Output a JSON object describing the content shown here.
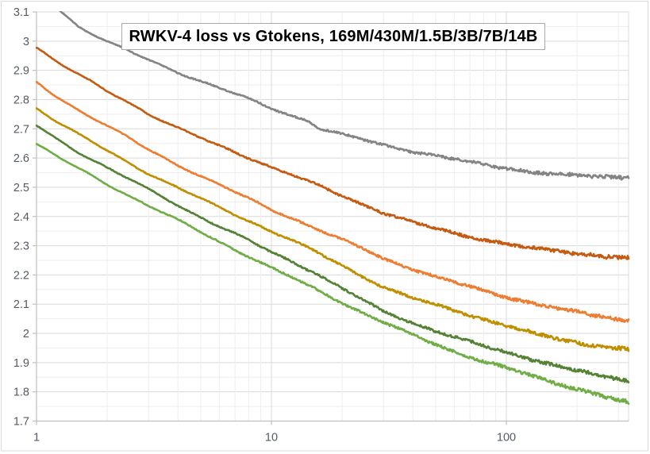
{
  "chart_data": {
    "type": "line",
    "title": "RWKV-4 loss vs Gtokens, 169M/430M/1.5B/3B/7B/14B",
    "xlabel": "",
    "ylabel": "",
    "legend": "none",
    "grid": "major+minor",
    "x_axis": {
      "scale": "log",
      "min": 1,
      "max": 331,
      "ticks": [
        {
          "label": "1",
          "value": 1
        },
        {
          "label": "10",
          "value": 10
        },
        {
          "label": "100",
          "value": 100
        }
      ],
      "minor_gridlines": [
        2,
        3,
        4,
        5,
        6,
        7,
        8,
        9,
        20,
        30,
        40,
        50,
        60,
        70,
        80,
        90,
        200,
        300
      ]
    },
    "y_axis": {
      "min": 1.7,
      "max": 3.1,
      "major_step": 0.1,
      "minor_step": 0.05,
      "tick_labels": [
        "3.1",
        "3",
        "2.9",
        "2.8",
        "2.7",
        "2.6",
        "2.5",
        "2.4",
        "2.3",
        "2.2",
        "2.1",
        "2",
        "1.9",
        "1.8",
        "1.7"
      ]
    },
    "series": [
      {
        "name": "169M",
        "color": "#848484",
        "points": [
          [
            1.2,
            3.12
          ],
          [
            1.5,
            3.055
          ],
          [
            2,
            3.0
          ],
          [
            2.5,
            2.965
          ],
          [
            3,
            2.935
          ],
          [
            4,
            2.893
          ],
          [
            5,
            2.862
          ],
          [
            6,
            2.838
          ],
          [
            8,
            2.8
          ],
          [
            10,
            2.77
          ],
          [
            12,
            2.748
          ],
          [
            14,
            2.732
          ],
          [
            15,
            2.72
          ],
          [
            16,
            2.703
          ],
          [
            18,
            2.692
          ],
          [
            20,
            2.682
          ],
          [
            25,
            2.662
          ],
          [
            30,
            2.645
          ],
          [
            40,
            2.622
          ],
          [
            50,
            2.606
          ],
          [
            65,
            2.59
          ],
          [
            80,
            2.576
          ],
          [
            100,
            2.565
          ],
          [
            130,
            2.553
          ],
          [
            160,
            2.546
          ],
          [
            200,
            2.541
          ],
          [
            260,
            2.536
          ],
          [
            331,
            2.533
          ]
        ]
      },
      {
        "name": "430M",
        "color": "#c55a11",
        "points": [
          [
            1,
            2.98
          ],
          [
            1.2,
            2.935
          ],
          [
            1.5,
            2.885
          ],
          [
            2,
            2.825
          ],
          [
            2.5,
            2.785
          ],
          [
            3,
            2.752
          ],
          [
            4,
            2.705
          ],
          [
            5,
            2.67
          ],
          [
            6,
            2.642
          ],
          [
            8,
            2.602
          ],
          [
            10,
            2.57
          ],
          [
            12,
            2.545
          ],
          [
            15,
            2.512
          ],
          [
            20,
            2.468
          ],
          [
            25,
            2.437
          ],
          [
            30,
            2.413
          ],
          [
            40,
            2.381
          ],
          [
            50,
            2.36
          ],
          [
            65,
            2.337
          ],
          [
            80,
            2.322
          ],
          [
            100,
            2.307
          ],
          [
            130,
            2.291
          ],
          [
            160,
            2.281
          ],
          [
            200,
            2.272
          ],
          [
            260,
            2.264
          ],
          [
            331,
            2.259
          ]
        ]
      },
      {
        "name": "1.5B",
        "color": "#ed7d31",
        "points": [
          [
            1,
            2.86
          ],
          [
            1.2,
            2.815
          ],
          [
            1.5,
            2.765
          ],
          [
            2,
            2.708
          ],
          [
            2.5,
            2.663
          ],
          [
            3,
            2.627
          ],
          [
            4,
            2.577
          ],
          [
            5,
            2.54
          ],
          [
            6,
            2.51
          ],
          [
            8,
            2.462
          ],
          [
            10,
            2.425
          ],
          [
            12,
            2.398
          ],
          [
            15,
            2.363
          ],
          [
            20,
            2.318
          ],
          [
            25,
            2.285
          ],
          [
            30,
            2.255
          ],
          [
            40,
            2.22
          ],
          [
            50,
            2.195
          ],
          [
            65,
            2.168
          ],
          [
            80,
            2.147
          ],
          [
            100,
            2.125
          ],
          [
            130,
            2.103
          ],
          [
            160,
            2.087
          ],
          [
            200,
            2.071
          ],
          [
            260,
            2.055
          ],
          [
            331,
            2.042
          ]
        ]
      },
      {
        "name": "3B",
        "color": "#bf8f00",
        "points": [
          [
            1,
            2.77
          ],
          [
            1.2,
            2.727
          ],
          [
            1.5,
            2.68
          ],
          [
            2,
            2.625
          ],
          [
            2.5,
            2.583
          ],
          [
            3,
            2.55
          ],
          [
            4,
            2.5
          ],
          [
            5,
            2.462
          ],
          [
            6,
            2.43
          ],
          [
            8,
            2.385
          ],
          [
            10,
            2.348
          ],
          [
            12,
            2.32
          ],
          [
            15,
            2.283
          ],
          [
            20,
            2.232
          ],
          [
            25,
            2.192
          ],
          [
            30,
            2.16
          ],
          [
            40,
            2.122
          ],
          [
            50,
            2.098
          ],
          [
            65,
            2.07
          ],
          [
            80,
            2.048
          ],
          [
            100,
            2.025
          ],
          [
            130,
            2.0
          ],
          [
            160,
            1.983
          ],
          [
            200,
            1.968
          ],
          [
            260,
            1.955
          ],
          [
            331,
            1.946
          ]
        ]
      },
      {
        "name": "7B",
        "color": "#548235",
        "points": [
          [
            1,
            2.71
          ],
          [
            1.2,
            2.667
          ],
          [
            1.5,
            2.62
          ],
          [
            2,
            2.565
          ],
          [
            2.5,
            2.525
          ],
          [
            3,
            2.492
          ],
          [
            4,
            2.44
          ],
          [
            5,
            2.4
          ],
          [
            6,
            2.368
          ],
          [
            8,
            2.318
          ],
          [
            10,
            2.278
          ],
          [
            12,
            2.248
          ],
          [
            15,
            2.21
          ],
          [
            20,
            2.152
          ],
          [
            25,
            2.108
          ],
          [
            30,
            2.075
          ],
          [
            40,
            2.037
          ],
          [
            50,
            2.01
          ],
          [
            65,
            1.98
          ],
          [
            80,
            1.958
          ],
          [
            100,
            1.935
          ],
          [
            130,
            1.91
          ],
          [
            160,
            1.89
          ],
          [
            200,
            1.872
          ],
          [
            260,
            1.852
          ],
          [
            331,
            1.838
          ]
        ]
      },
      {
        "name": "14B",
        "color": "#70ad47",
        "points": [
          [
            1,
            2.65
          ],
          [
            1.2,
            2.61
          ],
          [
            1.5,
            2.565
          ],
          [
            2,
            2.51
          ],
          [
            2.5,
            2.468
          ],
          [
            3,
            2.435
          ],
          [
            4,
            2.385
          ],
          [
            5,
            2.347
          ],
          [
            6,
            2.315
          ],
          [
            8,
            2.265
          ],
          [
            10,
            2.225
          ],
          [
            12,
            2.195
          ],
          [
            15,
            2.157
          ],
          [
            20,
            2.105
          ],
          [
            25,
            2.065
          ],
          [
            30,
            2.035
          ],
          [
            40,
            1.993
          ],
          [
            50,
            1.963
          ],
          [
            65,
            1.928
          ],
          [
            80,
            1.905
          ],
          [
            100,
            1.883
          ],
          [
            130,
            1.855
          ],
          [
            160,
            1.832
          ],
          [
            200,
            1.81
          ],
          [
            260,
            1.782
          ],
          [
            331,
            1.762
          ]
        ]
      }
    ]
  }
}
